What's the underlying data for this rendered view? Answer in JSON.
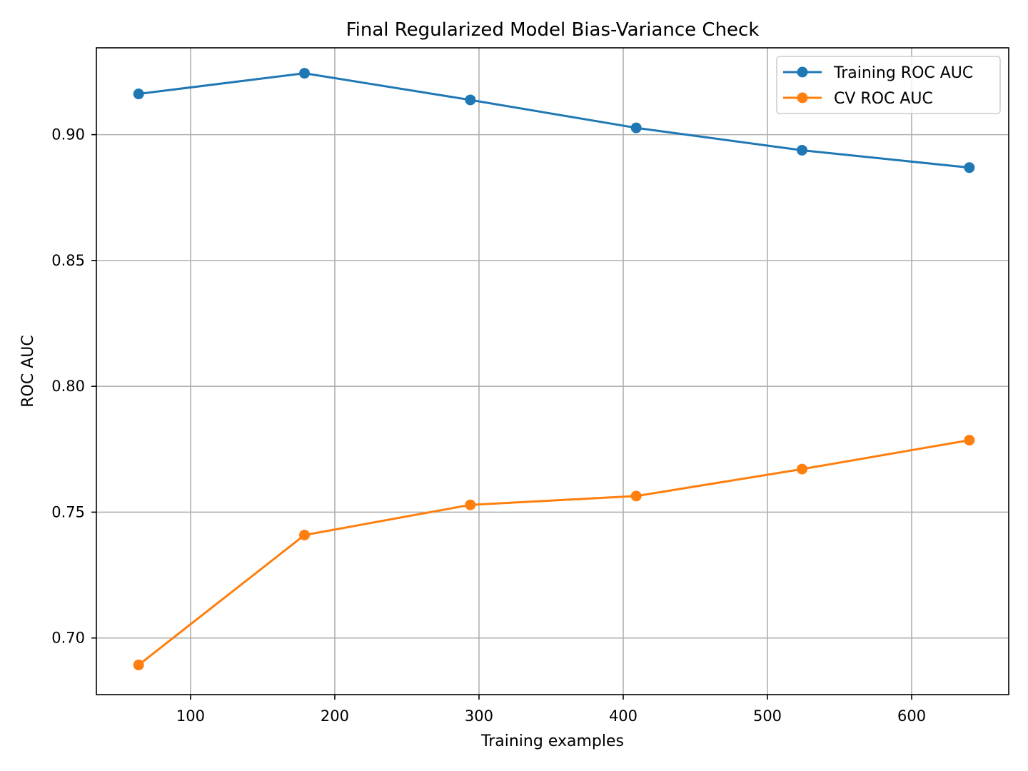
{
  "chart_data": {
    "type": "line",
    "title": "Final Regularized Model Bias-Variance Check",
    "xlabel": "Training examples",
    "ylabel": "ROC AUC",
    "xlim": [
      34.7,
      667.3
    ],
    "ylim": [
      0.6775,
      0.9345
    ],
    "x_ticks": [
      100,
      200,
      300,
      400,
      500,
      600
    ],
    "y_ticks": [
      0.7,
      0.75,
      0.8,
      0.85,
      0.9
    ],
    "x_tick_labels": [
      "100",
      "200",
      "300",
      "400",
      "500",
      "600"
    ],
    "y_tick_labels": [
      "0.70",
      "0.75",
      "0.80",
      "0.85",
      "0.90"
    ],
    "grid": true,
    "legend_position": "top-right",
    "x": [
      64,
      179,
      294,
      409,
      524,
      640
    ],
    "series": [
      {
        "name": "Training ROC AUC",
        "color": "#1f77b4",
        "marker": "circle",
        "values": [
          0.9162,
          0.9244,
          0.9138,
          0.9027,
          0.8938,
          0.8869
        ]
      },
      {
        "name": "CV ROC AUC",
        "color": "#ff7f0e",
        "marker": "circle",
        "values": [
          0.6893,
          0.7409,
          0.7529,
          0.7564,
          0.7671,
          0.7786
        ]
      }
    ]
  }
}
